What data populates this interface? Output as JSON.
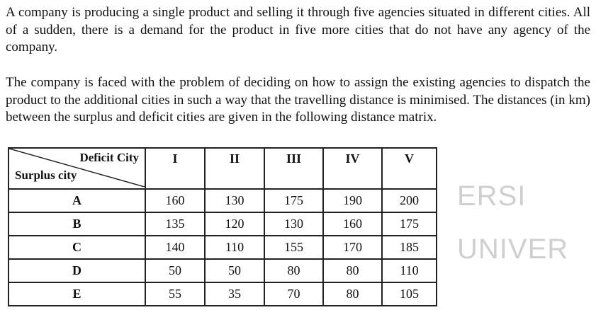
{
  "paragraphs": [
    "A company is producing a single product and selling it through five agencies situated in different cities. All of a sudden, there is a demand for the product in five more cities that do not have any agency of the company.",
    "The company is faced with the problem of deciding on how to assign the existing agencies to dispatch the product to the additional cities in such a way that the travelling distance is minimised. The distances (in km) between the surplus and deficit cities are given in the following distance matrix."
  ],
  "watermark": {
    "left": "ERSI",
    "right": "UNIVER"
  },
  "table": {
    "corner_top": "Deficit City",
    "corner_bottom": "Surplus city",
    "columns": [
      "I",
      "II",
      "III",
      "IV",
      "V"
    ],
    "rows": [
      {
        "label": "A",
        "values": [
          "160",
          "130",
          "175",
          "190",
          "200"
        ]
      },
      {
        "label": "B",
        "values": [
          "135",
          "120",
          "130",
          "160",
          "175"
        ]
      },
      {
        "label": "C",
        "values": [
          "140",
          "110",
          "155",
          "170",
          "185"
        ]
      },
      {
        "label": "D",
        "values": [
          "50",
          "50",
          "80",
          "80",
          "110"
        ]
      },
      {
        "label": "E",
        "values": [
          "55",
          "35",
          "70",
          "80",
          "105"
        ]
      }
    ]
  }
}
